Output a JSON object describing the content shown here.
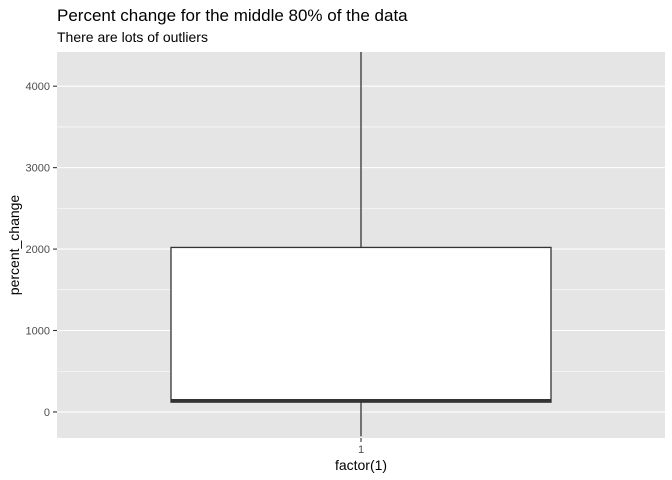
{
  "chart_data": {
    "type": "boxplot",
    "title": "Percent change for the middle 80% of the data",
    "subtitle": "There are lots of outliers",
    "xlabel": "factor(1)",
    "ylabel": "percent_change",
    "categories": [
      "1"
    ],
    "boxes": [
      {
        "category": "1",
        "lower_whisker": -300,
        "q1": 120,
        "median": 140,
        "q3": 2020,
        "upper_whisker": 4420
      }
    ],
    "ylim": [
      -320,
      4420
    ],
    "yticks": [
      0,
      1000,
      2000,
      3000,
      4000
    ],
    "ytick_labels": [
      "0",
      "1000",
      "2000",
      "3000",
      "4000"
    ],
    "grid": true,
    "colors": {
      "panel": "#e5e5e5",
      "grid": "#ffffff",
      "box_fill": "#ffffff",
      "box_line": "#333333"
    }
  }
}
